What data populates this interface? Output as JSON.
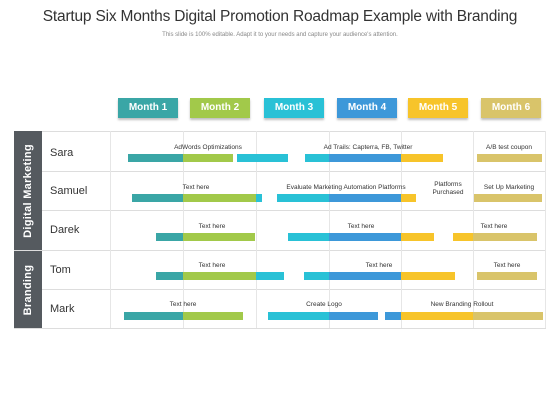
{
  "title": "Startup Six Months Digital Promotion Roadmap Example with Branding",
  "subtitle": "This slide is 100% editable. Adapt it to your needs and capture your audience's attention.",
  "colors": {
    "teal": "#3aa6a6",
    "green": "#a2c94a",
    "cyan": "#29c1d6",
    "blue": "#3d98d9",
    "yellow": "#f7c42a",
    "khaki": "#d9c46a",
    "group": "#555a5f"
  },
  "months": [
    "Month 1",
    "Month 2",
    "Month 3",
    "Month 4",
    "Month 5",
    "Month 6"
  ],
  "groups": [
    {
      "label": "Digital Marketing"
    },
    {
      "label": "Branding"
    }
  ],
  "rows": [
    {
      "name": "Sara",
      "labels": [
        "AdWords Optimizations",
        "Ad Trails: Capterra, FB, Twitter",
        "A/B test coupon"
      ]
    },
    {
      "name": "Samuel",
      "labels": [
        "Text here",
        "Evaluate Marketing Automation Platforms",
        "Platforms\nPurchased",
        "Set Up Marketing"
      ]
    },
    {
      "name": "Darek",
      "labels": [
        "Text here",
        "Text here",
        "Text here"
      ]
    },
    {
      "name": "Tom",
      "labels": [
        "Text here",
        "Text here",
        "Text here"
      ]
    },
    {
      "name": "Mark",
      "labels": [
        "Text here",
        "Create Logo",
        "New Branding Rollout"
      ]
    }
  ]
}
